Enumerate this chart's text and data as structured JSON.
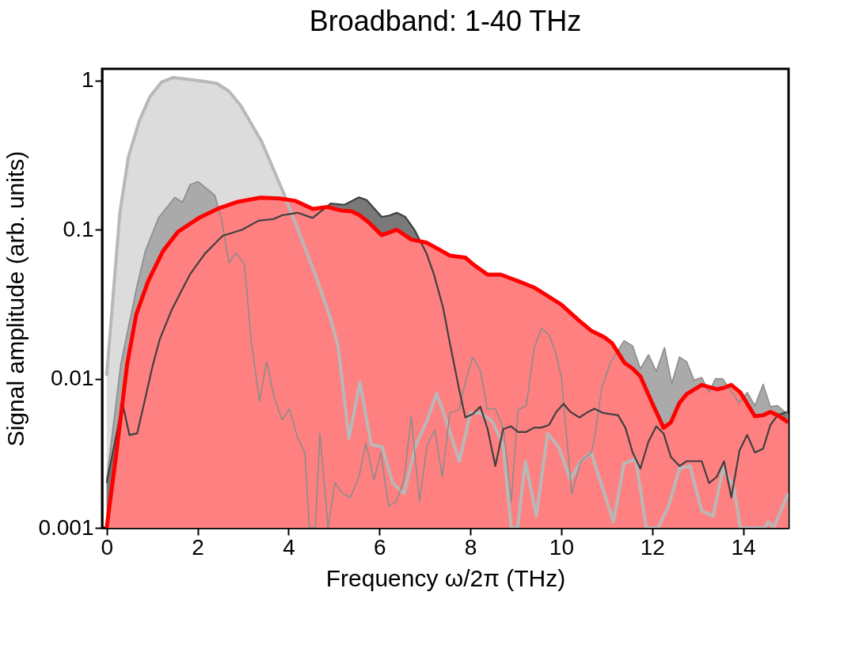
{
  "chart_data": {
    "type": "area",
    "title": "Broadband: 1-40 THz",
    "xlabel": "Frequency ω/2π (THz)",
    "ylabel": "Signal amplitude (arb. units)",
    "log": "y",
    "grid": false,
    "xlim": [
      -0.1,
      15
    ],
    "xticks": [
      0,
      2,
      4,
      6,
      8,
      10,
      12,
      14
    ],
    "ylim": [
      0.001,
      1.2
    ],
    "yticks": [
      0.001,
      0.01,
      0.1,
      1
    ],
    "series": [
      {
        "color": "#b8b8b8",
        "x": [
          0,
          0.29,
          0.48,
          0.72,
          0.95,
          1.21,
          1.47,
          2.03,
          2.42,
          2.69,
          2.95,
          3.41,
          3.93,
          4.59,
          4.93,
          5.09,
          5.33,
          5.57,
          5.82,
          6.06,
          6.29,
          6.54,
          6.8,
          7.03,
          7.26,
          7.49,
          7.76,
          8.0,
          8.22,
          8.48,
          8.72,
          8.9,
          9.04,
          9.21,
          9.45,
          9.7,
          9.94,
          10.2,
          10.43,
          10.66,
          10.92,
          11.15,
          11.38,
          11.64,
          11.87,
          12.13,
          12.36,
          12.6,
          12.83,
          13.09,
          13.34,
          13.56,
          13.79,
          13.94,
          14.47,
          14.56,
          14.67,
          14.99
        ],
        "values": [
          0.0105,
          0.13,
          0.31,
          0.54,
          0.78,
          0.98,
          1.05,
          1.0,
          0.96,
          0.85,
          0.68,
          0.39,
          0.165,
          0.05,
          0.025,
          0.0166,
          0.004,
          0.0095,
          0.0036,
          0.0035,
          0.002,
          0.0017,
          0.0036,
          0.0051,
          0.008,
          0.005,
          0.0028,
          0.0059,
          0.0059,
          0.0052,
          0.0036,
          0.001,
          0.001,
          0.0028,
          0.0012,
          0.0043,
          0.0035,
          0.0021,
          0.0028,
          0.0032,
          0.0018,
          0.0011,
          0.0027,
          0.0029,
          0.001,
          0.001,
          0.0014,
          0.0025,
          0.0026,
          0.0013,
          0.0012,
          0.0025,
          0.0019,
          0.001,
          0.001,
          0.0011,
          0.001,
          0.0017
        ]
      },
      {
        "color": "#8c8c8c",
        "x": [
          0,
          0.31,
          0.66,
          0.85,
          1.14,
          1.5,
          1.67,
          1.83,
          2.01,
          2.19,
          2.38,
          2.52,
          2.69,
          2.85,
          3.03,
          3.18,
          3.36,
          3.52,
          3.69,
          3.86,
          4.02,
          4.2,
          4.36,
          4.46,
          4.59,
          4.69,
          4.87,
          5.02,
          5.19,
          5.36,
          5.55,
          5.7,
          5.88,
          6.03,
          6.2,
          6.37,
          6.54,
          6.7,
          6.88,
          7.05,
          7.22,
          7.38,
          7.55,
          7.75,
          7.89,
          8.05,
          8.22,
          8.37,
          8.55,
          8.73,
          8.9,
          9.05,
          9.23,
          9.4,
          9.56,
          9.74,
          9.89,
          10.0,
          10.23,
          10.43,
          10.66,
          10.73,
          10.89,
          11.08,
          11.38,
          11.57,
          11.74,
          11.92,
          12.09,
          12.27,
          12.43,
          12.6,
          12.76,
          12.92,
          13.09,
          13.25,
          13.39,
          13.55,
          13.91,
          14.09,
          14.26,
          14.44,
          14.6,
          14.76,
          14.99
        ],
        "values": [
          0.0021,
          0.0125,
          0.041,
          0.072,
          0.12,
          0.165,
          0.153,
          0.2,
          0.21,
          0.19,
          0.17,
          0.12,
          0.06,
          0.07,
          0.058,
          0.018,
          0.0071,
          0.013,
          0.0074,
          0.0053,
          0.0063,
          0.004,
          0.0032,
          0.001,
          0.001,
          0.0043,
          0.001,
          0.002,
          0.0017,
          0.0016,
          0.0022,
          0.0037,
          0.0021,
          0.0032,
          0.0014,
          0.0015,
          0.0021,
          0.0056,
          0.0015,
          0.0036,
          0.0045,
          0.0022,
          0.0059,
          0.0062,
          0.0095,
          0.014,
          0.0114,
          0.0063,
          0.0063,
          0.0046,
          0.0015,
          0.0062,
          0.0066,
          0.0158,
          0.0218,
          0.0195,
          0.0145,
          0.0104,
          0.0017,
          0.0028,
          0.0032,
          0.004,
          0.0087,
          0.0128,
          0.018,
          0.0166,
          0.0117,
          0.0145,
          0.0112,
          0.0162,
          0.0093,
          0.014,
          0.013,
          0.0098,
          0.0102,
          0.0081,
          0.01,
          0.01,
          0.0069,
          0.0081,
          0.0066,
          0.0092,
          0.0065,
          0.0066,
          0.0057
        ]
      },
      {
        "color": "#404040",
        "x": [
          0,
          0.35,
          0.5,
          0.67,
          0.84,
          1.01,
          1.17,
          1.43,
          1.83,
          2.16,
          2.55,
          2.98,
          3.34,
          3.67,
          3.86,
          4.2,
          4.53,
          4.93,
          5.23,
          5.55,
          5.72,
          6.05,
          6.2,
          6.38,
          6.57,
          6.77,
          7.03,
          7.2,
          7.4,
          7.55,
          7.76,
          7.89,
          8.05,
          8.22,
          8.38,
          8.55,
          8.72,
          8.89,
          9.05,
          9.23,
          9.4,
          9.56,
          9.73,
          9.89,
          10.05,
          10.2,
          10.4,
          10.59,
          10.73,
          10.92,
          11.25,
          11.41,
          11.57,
          11.74,
          11.92,
          12.09,
          12.25,
          12.41,
          12.6,
          12.76,
          13.09,
          13.25,
          13.42,
          13.58,
          13.74,
          13.92,
          14.09,
          14.26,
          14.44,
          14.6,
          14.76,
          14.96
        ],
        "values": [
          0.002,
          0.0068,
          0.0042,
          0.0043,
          0.0072,
          0.0122,
          0.0185,
          0.029,
          0.05,
          0.069,
          0.091,
          0.1,
          0.115,
          0.118,
          0.125,
          0.13,
          0.12,
          0.15,
          0.147,
          0.165,
          0.158,
          0.122,
          0.124,
          0.13,
          0.122,
          0.1,
          0.07,
          0.05,
          0.03,
          0.0173,
          0.0083,
          0.0055,
          0.0058,
          0.0065,
          0.0046,
          0.0026,
          0.0046,
          0.0048,
          0.0044,
          0.0044,
          0.0047,
          0.0047,
          0.0049,
          0.006,
          0.0068,
          0.006,
          0.0055,
          0.006,
          0.0063,
          0.0059,
          0.0057,
          0.0047,
          0.0032,
          0.0025,
          0.0038,
          0.0048,
          0.0043,
          0.003,
          0.0026,
          0.0028,
          0.0028,
          0.002,
          0.0022,
          0.0028,
          0.0016,
          0.0033,
          0.0042,
          0.0032,
          0.0034,
          0.0049,
          0.0057,
          0.006
        ]
      },
      {
        "color": "#ff0000",
        "x": [
          0,
          0.22,
          0.45,
          0.65,
          0.91,
          1.24,
          1.57,
          2.03,
          2.48,
          2.89,
          3.38,
          3.8,
          4.16,
          4.53,
          4.86,
          5.19,
          5.38,
          5.55,
          5.75,
          6.05,
          6.38,
          6.7,
          7.03,
          7.2,
          7.55,
          7.89,
          8.08,
          8.38,
          8.67,
          9.07,
          9.4,
          9.76,
          10.0,
          10.43,
          10.66,
          10.95,
          11.12,
          11.39,
          11.57,
          11.74,
          11.97,
          12.25,
          12.41,
          12.6,
          12.76,
          13.09,
          13.42,
          13.58,
          13.74,
          13.94,
          14.26,
          14.44,
          14.6,
          14.76,
          14.99
        ],
        "values": [
          0.001,
          0.0033,
          0.0125,
          0.027,
          0.045,
          0.072,
          0.097,
          0.12,
          0.14,
          0.154,
          0.164,
          0.162,
          0.156,
          0.138,
          0.142,
          0.134,
          0.133,
          0.126,
          0.113,
          0.092,
          0.1,
          0.086,
          0.082,
          0.077,
          0.067,
          0.065,
          0.058,
          0.05,
          0.05,
          0.045,
          0.041,
          0.035,
          0.0315,
          0.024,
          0.021,
          0.019,
          0.0173,
          0.0128,
          0.0117,
          0.0104,
          0.0072,
          0.0047,
          0.0051,
          0.0069,
          0.0079,
          0.0091,
          0.0085,
          0.0087,
          0.0091,
          0.0081,
          0.0056,
          0.0057,
          0.006,
          0.0057,
          0.0051
        ]
      }
    ]
  }
}
